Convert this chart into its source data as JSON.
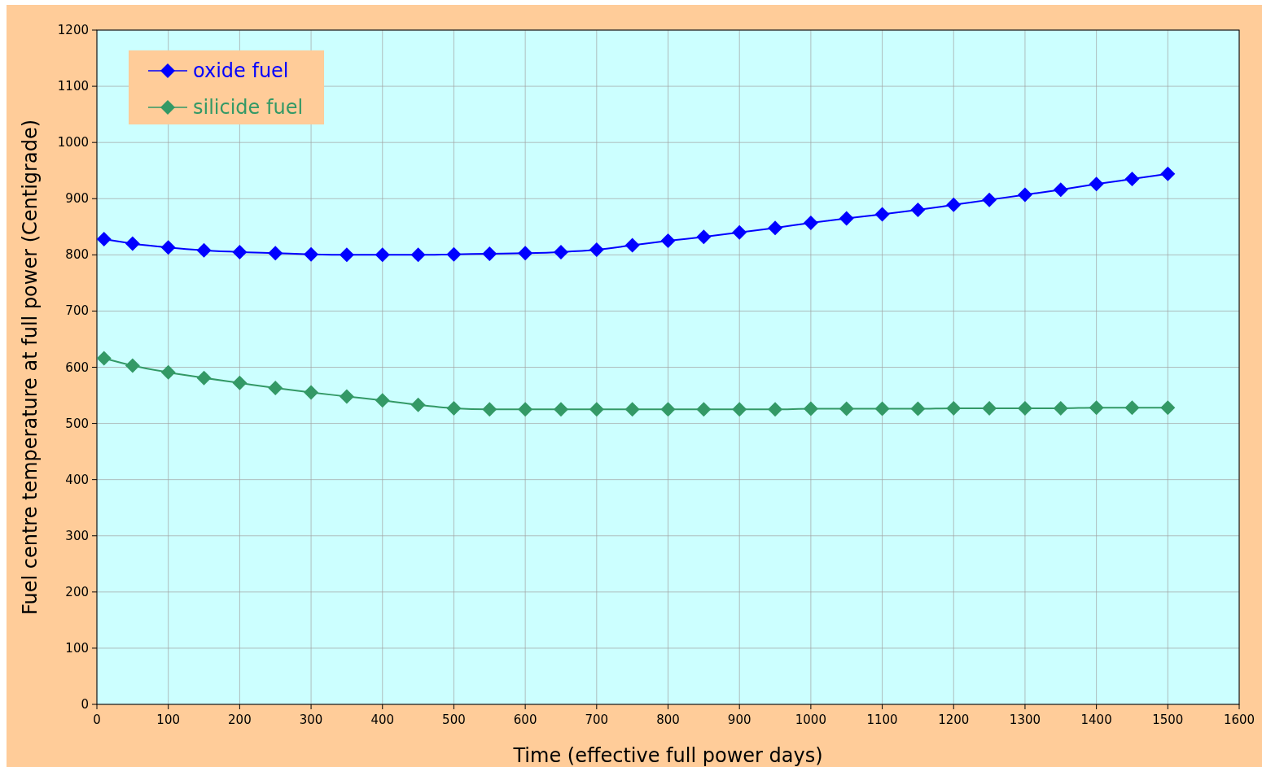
{
  "chart_data": {
    "type": "line",
    "xlabel": "Time (effective full power days)",
    "ylabel": "Fuel centre temperature at full power (Centigrade)",
    "x": [
      10,
      50,
      100,
      150,
      200,
      250,
      300,
      350,
      400,
      450,
      500,
      550,
      600,
      650,
      700,
      750,
      800,
      850,
      900,
      950,
      1000,
      1050,
      1100,
      1150,
      1200,
      1250,
      1300,
      1350,
      1400,
      1450,
      1500
    ],
    "series": [
      {
        "name": "oxide fuel",
        "color": "#0000ff",
        "values": [
          828,
          820,
          813,
          808,
          805,
          803,
          801,
          800,
          800,
          800,
          801,
          802,
          803,
          805,
          809,
          817,
          825,
          832,
          840,
          848,
          857,
          865,
          872,
          880,
          889,
          898,
          907,
          916,
          926,
          935,
          944
        ]
      },
      {
        "name": "silicide fuel",
        "color": "#339966",
        "values": [
          616,
          603,
          591,
          581,
          572,
          563,
          555,
          548,
          541,
          533,
          527,
          525,
          525,
          525,
          525,
          525,
          525,
          525,
          525,
          525,
          526,
          526,
          526,
          526,
          527,
          527,
          527,
          527,
          528,
          528,
          528
        ]
      }
    ],
    "xlim": [
      0,
      1600
    ],
    "xticks": [
      0,
      100,
      200,
      300,
      400,
      500,
      600,
      700,
      800,
      900,
      1000,
      1100,
      1200,
      1300,
      1400,
      1500,
      1600
    ],
    "ylim": [
      0,
      1200
    ],
    "yticks": [
      0,
      100,
      200,
      300,
      400,
      500,
      600,
      700,
      800,
      900,
      1000,
      1100,
      1200
    ],
    "grid": true,
    "legend": "top left",
    "marker": "diamond",
    "line_style": "solid"
  }
}
